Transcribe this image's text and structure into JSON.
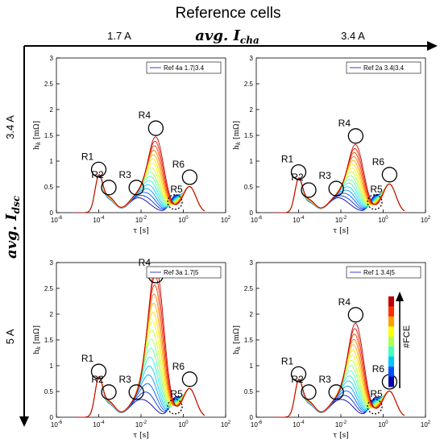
{
  "title": "Reference cells",
  "top_axis": {
    "label_main": "avg. ",
    "label_sub": "cha",
    "label_var": "I",
    "cols": [
      "1.7 A",
      "3.4 A"
    ]
  },
  "left_axis": {
    "label_main": "avg. ",
    "label_sub": "dsc",
    "label_var": "I",
    "rows": [
      "3.4 A",
      "5 A"
    ]
  },
  "colorbar_label": "#FCE",
  "colors": {
    "text": "#000000",
    "axis": "#000000",
    "legend_line": "#3c3cd2",
    "colorbar": [
      "#0000aa",
      "#0050ff",
      "#00c8ff",
      "#40ffbf",
      "#b0ff50",
      "#ffff00",
      "#ffa000",
      "#ff3000",
      "#c00000"
    ]
  },
  "chart_data": [
    {
      "type": "line",
      "legend": "Ref 4a 1.7|3.4",
      "xlabel": "τ [s]",
      "ylabel": "h_k [mΩ]",
      "xscale": "log",
      "xlim": [
        1e-06,
        100
      ],
      "ylim": [
        0,
        3
      ],
      "yticks": [
        0,
        0.5,
        1,
        1.5,
        2,
        2.5,
        3
      ],
      "xticks": [
        "10^-6",
        "10^-4",
        "10^-2",
        "10^0",
        "10^2"
      ],
      "peaks": [
        {
          "label": "R1",
          "tau": 0.0001,
          "h_start": 0.65,
          "h_end": 0.65
        },
        {
          "label": "R2",
          "tau": 0.0003,
          "h_start": 0.25,
          "h_end": 0.3
        },
        {
          "label": "R3",
          "tau": 0.006,
          "h_start": 0.25,
          "h_end": 0.3
        },
        {
          "label": "R4",
          "tau": 0.05,
          "h_start": 0.1,
          "h_end": 1.45
        },
        {
          "label": "R5",
          "tau": 0.4,
          "h_start": 0.3,
          "h_end": 0.05
        },
        {
          "label": "R6",
          "tau": 2,
          "h_start": 0.5,
          "h_end": 0.5
        }
      ],
      "dotted_marker": "R5",
      "curves": 16
    },
    {
      "type": "line",
      "legend": "Ref 2a 3.4|3.4",
      "xlabel": "τ [s]",
      "ylabel": "h_k [mΩ]",
      "xscale": "log",
      "xlim": [
        1e-06,
        100
      ],
      "ylim": [
        0,
        3
      ],
      "yticks": [
        0,
        0.5,
        1,
        1.5,
        2,
        2.5,
        3
      ],
      "xticks": [
        "10^-6",
        "10^-4",
        "10^-2",
        "10^0",
        "10^2"
      ],
      "peaks": [
        {
          "label": "R1",
          "tau": 0.0001,
          "h_start": 0.6,
          "h_end": 0.6
        },
        {
          "label": "R2",
          "tau": 0.0003,
          "h_start": 0.2,
          "h_end": 0.25
        },
        {
          "label": "R3",
          "tau": 0.006,
          "h_start": 0.25,
          "h_end": 0.28
        },
        {
          "label": "R4",
          "tau": 0.05,
          "h_start": 0.1,
          "h_end": 1.3
        },
        {
          "label": "R5",
          "tau": 0.4,
          "h_start": 0.3,
          "h_end": 0.05
        },
        {
          "label": "R6",
          "tau": 2,
          "h_start": 0.55,
          "h_end": 0.55
        }
      ],
      "dotted_marker": "R5",
      "curves": 16
    },
    {
      "type": "line",
      "legend": "Ref 3a 1.7|5",
      "xlabel": "τ [s]",
      "ylabel": "h_k [mΩ]",
      "xscale": "log",
      "xlim": [
        1e-06,
        100
      ],
      "ylim": [
        0,
        3
      ],
      "yticks": [
        0,
        0.5,
        1,
        1.5,
        2,
        2.5,
        3
      ],
      "xticks": [
        "10^-6",
        "10^-4",
        "10^-2",
        "10^0",
        "10^2"
      ],
      "peaks": [
        {
          "label": "R1",
          "tau": 0.0001,
          "h_start": 0.7,
          "h_end": 0.7
        },
        {
          "label": "R2",
          "tau": 0.0003,
          "h_start": 0.25,
          "h_end": 0.3
        },
        {
          "label": "R3",
          "tau": 0.006,
          "h_start": 0.25,
          "h_end": 0.3
        },
        {
          "label": "R4",
          "tau": 0.05,
          "h_start": 0.2,
          "h_end": 2.9
        },
        {
          "label": "R5",
          "tau": 0.4,
          "h_start": 0.35,
          "h_end": 0.05
        },
        {
          "label": "R6",
          "tau": 2,
          "h_start": 0.55,
          "h_end": 0.55
        }
      ],
      "dotted_marker": "R5",
      "curves": 16
    },
    {
      "type": "line",
      "legend": "Ref 1 3.4|5",
      "xlabel": "τ [s]",
      "ylabel": "h_k [mΩ]",
      "xscale": "log",
      "xlim": [
        1e-06,
        100
      ],
      "ylim": [
        0,
        3
      ],
      "yticks": [
        0,
        0.5,
        1,
        1.5,
        2,
        2.5,
        3
      ],
      "xticks": [
        "10^-6",
        "10^-4",
        "10^-2",
        "10^0",
        "10^2"
      ],
      "peaks": [
        {
          "label": "R1",
          "tau": 0.0001,
          "h_start": 0.65,
          "h_end": 0.65
        },
        {
          "label": "R2",
          "tau": 0.0003,
          "h_start": 0.25,
          "h_end": 0.3
        },
        {
          "label": "R3",
          "tau": 0.006,
          "h_start": 0.25,
          "h_end": 0.3
        },
        {
          "label": "R4",
          "tau": 0.05,
          "h_start": 0.2,
          "h_end": 1.8
        },
        {
          "label": "R5",
          "tau": 0.4,
          "h_start": 0.35,
          "h_end": 0.05
        },
        {
          "label": "R6",
          "tau": 2,
          "h_start": 0.5,
          "h_end": 0.5
        }
      ],
      "dotted_marker": "R5",
      "curves": 16
    }
  ]
}
